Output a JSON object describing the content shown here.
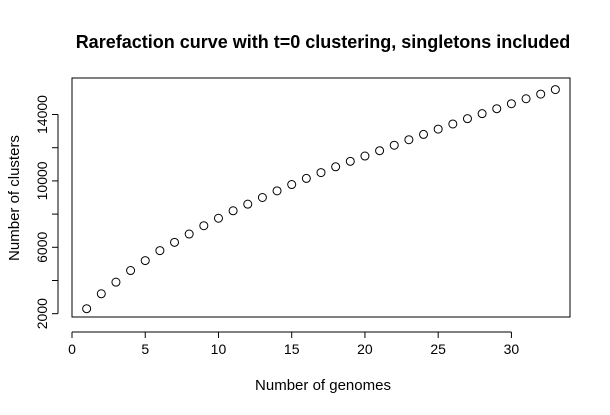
{
  "chart_data": {
    "type": "scatter",
    "title": "Rarefaction curve with t=0 clustering, singletons included",
    "xlabel": "Number of genomes",
    "ylabel": "Number of clusters",
    "xlim": [
      0,
      34
    ],
    "ylim": [
      1800,
      16200
    ],
    "x_ticks": [
      0,
      5,
      10,
      15,
      20,
      25,
      30
    ],
    "y_ticks": [
      2000,
      6000,
      10000,
      14000
    ],
    "marker": "open-circle",
    "point_color": "#000000",
    "grid": false,
    "x": [
      1,
      2,
      3,
      4,
      5,
      6,
      7,
      8,
      9,
      10,
      11,
      12,
      13,
      14,
      15,
      16,
      17,
      18,
      19,
      20,
      21,
      22,
      23,
      24,
      25,
      26,
      27,
      28,
      29,
      30,
      31,
      32,
      33
    ],
    "y": [
      2300,
      3200,
      3900,
      4600,
      5200,
      5800,
      6300,
      6800,
      7300,
      7750,
      8200,
      8600,
      9000,
      9400,
      9780,
      10150,
      10500,
      10850,
      11180,
      11500,
      11820,
      12150,
      12480,
      12800,
      13120,
      13430,
      13750,
      14050,
      14350,
      14650,
      14950,
      15230,
      15500
    ]
  }
}
